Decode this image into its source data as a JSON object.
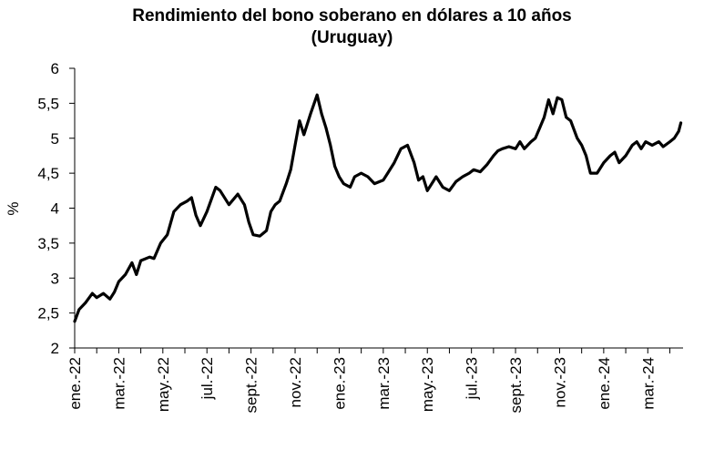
{
  "chart_data": {
    "type": "line",
    "title_line1": "Rendimiento del bono soberano en dólares a 10 años",
    "title_line2": "(Uruguay)",
    "xlabel": "",
    "ylabel": "%",
    "ylim": [
      2,
      6
    ],
    "yticks": [
      "2",
      "2,5",
      "3",
      "3,5",
      "4",
      "4,5",
      "5",
      "5,5",
      "6"
    ],
    "xticks": [
      "ene.-22",
      "mar.-22",
      "may.-22",
      "jul.-22",
      "sept.-22",
      "nov.-22",
      "ene.-23",
      "mar.-23",
      "may.-23",
      "jul.-23",
      "sept.-23",
      "nov.-23",
      "ene.-24",
      "mar.-24"
    ],
    "grid": false,
    "legend": "none",
    "series": [
      {
        "color": "#000000",
        "x": [
          0,
          0.1,
          0.25,
          0.4,
          0.5,
          0.65,
          0.8,
          0.9,
          1.0,
          1.15,
          1.3,
          1.4,
          1.5,
          1.7,
          1.8,
          1.95,
          2.1,
          2.25,
          2.4,
          2.55,
          2.65,
          2.75,
          2.85,
          3.0,
          3.2,
          3.3,
          3.5,
          3.7,
          3.8,
          3.85,
          3.95,
          4.05,
          4.2,
          4.35,
          4.45,
          4.55,
          4.65,
          4.8,
          4.9,
          5.0,
          5.1,
          5.2,
          5.35,
          5.5,
          5.6,
          5.7,
          5.8,
          5.9,
          6.0,
          6.1,
          6.25,
          6.35,
          6.5,
          6.65,
          6.8,
          7.0,
          7.1,
          7.25,
          7.4,
          7.55,
          7.7,
          7.8,
          7.9,
          8.0,
          8.1,
          8.2,
          8.35,
          8.5,
          8.65,
          8.8,
          8.95,
          9.05,
          9.2,
          9.35,
          9.5,
          9.6,
          9.7,
          9.85,
          10.0,
          10.1,
          10.2,
          10.35,
          10.45,
          10.55,
          10.65,
          10.75,
          10.85,
          10.95,
          11.05,
          11.15,
          11.25,
          11.4,
          11.5,
          11.6,
          11.7,
          11.85,
          12.0,
          12.15,
          12.25,
          12.35,
          12.5,
          12.65,
          12.75,
          12.85,
          12.95,
          13.1,
          13.25,
          13.35,
          13.5,
          13.6,
          13.7,
          13.75
        ],
        "values": [
          2.38,
          2.55,
          2.65,
          2.78,
          2.72,
          2.78,
          2.7,
          2.8,
          2.95,
          3.05,
          3.22,
          3.05,
          3.25,
          3.3,
          3.28,
          3.5,
          3.62,
          3.95,
          4.05,
          4.1,
          4.15,
          3.9,
          3.75,
          3.95,
          4.3,
          4.25,
          4.05,
          4.2,
          4.1,
          4.05,
          3.8,
          3.62,
          3.6,
          3.68,
          3.95,
          4.05,
          4.1,
          4.35,
          4.55,
          4.9,
          5.25,
          5.05,
          5.35,
          5.62,
          5.35,
          5.15,
          4.9,
          4.6,
          4.45,
          4.35,
          4.3,
          4.45,
          4.5,
          4.45,
          4.35,
          4.4,
          4.5,
          4.65,
          4.85,
          4.9,
          4.65,
          4.4,
          4.45,
          4.25,
          4.35,
          4.45,
          4.3,
          4.25,
          4.38,
          4.45,
          4.5,
          4.55,
          4.52,
          4.62,
          4.75,
          4.82,
          4.85,
          4.88,
          4.85,
          4.95,
          4.85,
          4.95,
          5.0,
          5.15,
          5.3,
          5.55,
          5.35,
          5.58,
          5.55,
          5.3,
          5.25,
          5.0,
          4.9,
          4.75,
          4.5,
          4.5,
          4.65,
          4.75,
          4.8,
          4.65,
          4.75,
          4.9,
          4.95,
          4.85,
          4.95,
          4.9,
          4.95,
          4.88,
          4.95,
          5.0,
          5.1,
          5.22
        ]
      }
    ]
  }
}
